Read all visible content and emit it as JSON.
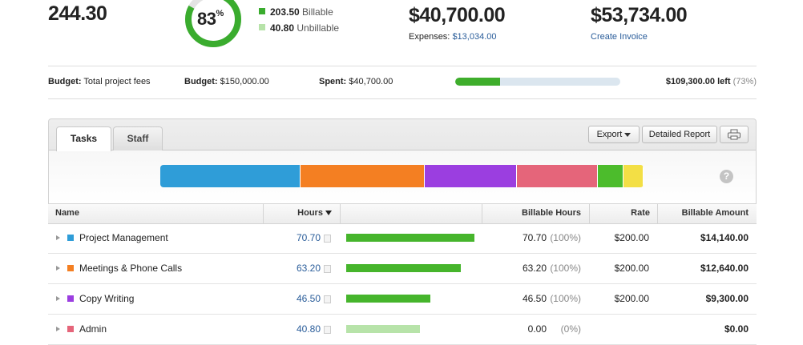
{
  "summary": {
    "total_hours": "244.30",
    "donut": {
      "value": 83,
      "unit": "%",
      "color": "#3aac2e",
      "track": "#e3e3e3"
    },
    "billable": {
      "hours": "203.50",
      "label": "Billable",
      "color": "#3aac2e"
    },
    "unbillable": {
      "hours": "40.80",
      "label": "Unbillable",
      "color": "#b7e3a9"
    },
    "amount": "$40,700.00",
    "expenses_label": "Expenses:",
    "expenses": "$13,034.00",
    "invoice_amount": "$53,734.00",
    "invoice_link": "Create Invoice"
  },
  "budget": {
    "type_label": "Budget:",
    "type": "Total project fees",
    "budget_label": "Budget:",
    "budget": "$150,000.00",
    "spent_label": "Spent:",
    "spent": "$40,700.00",
    "left": "$109,300.00 left",
    "percent_left": {
      "value": 73,
      "label": "(73%)"
    }
  },
  "tabs": [
    "Tasks",
    "Staff"
  ],
  "buttons": {
    "export": "Export",
    "report": "Detailed Report"
  },
  "help": "?",
  "breakdown_extra": [
    {
      "color": "#4cbc2c",
      "hours": 13.0
    },
    {
      "color": "#f3df45",
      "hours": 10.1
    }
  ],
  "table": {
    "columns": [
      "Name",
      "Hours",
      "Billable Hours",
      "Rate",
      "Billable Amount"
    ],
    "rows": [
      {
        "color": "#2f9dd8",
        "name": "Project Management",
        "hours": "70.70",
        "bar_color": "#46b52c",
        "billable_hours": "70.70",
        "billable_percent": "(100%)",
        "rate": "$200.00",
        "amount": "$14,140.00"
      },
      {
        "color": "#f47f22",
        "name": "Meetings & Phone Calls",
        "hours": "63.20",
        "bar_color": "#46b52c",
        "billable_hours": "63.20",
        "billable_percent": "(100%)",
        "rate": "$200.00",
        "amount": "$12,640.00"
      },
      {
        "color": "#9b3ee0",
        "name": "Copy Writing",
        "hours": "46.50",
        "bar_color": "#46b52c",
        "billable_hours": "46.50",
        "billable_percent": "(100%)",
        "rate": "$200.00",
        "amount": "$9,300.00"
      },
      {
        "color": "#e5657a",
        "name": "Admin",
        "hours": "40.80",
        "bar_color": "#b7e3a9",
        "billable_hours": "0.00",
        "billable_percent": "(0%)",
        "amount": "$0.00"
      }
    ]
  }
}
